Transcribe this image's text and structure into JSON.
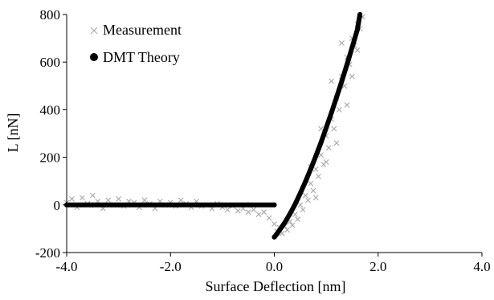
{
  "chart_data": {
    "type": "scatter",
    "title": "",
    "xlabel": "Surface Deflection [nm]",
    "ylabel": "L [nN]",
    "xlim": [
      -4.0,
      4.0
    ],
    "ylim": [
      -200,
      800
    ],
    "xticks": [
      -4.0,
      -2.0,
      0.0,
      2.0,
      4.0
    ],
    "yticks": [
      -200,
      0,
      200,
      400,
      600,
      800
    ],
    "xtick_labels": [
      "-4.0",
      "-2.0",
      "0.0",
      "2.0",
      "4.0"
    ],
    "ytick_labels": [
      "-200",
      "0",
      "200",
      "400",
      "600",
      "800"
    ],
    "grid": false,
    "legend_position": "top-left",
    "colors": {
      "measurement": "#a6a6a6",
      "theory": "#000000"
    },
    "series": [
      {
        "name": "Measurement",
        "marker": "x",
        "points": [
          [
            -4.0,
            10
          ],
          [
            -3.9,
            25
          ],
          [
            -3.8,
            -10
          ],
          [
            -3.7,
            30
          ],
          [
            -3.6,
            5
          ],
          [
            -3.5,
            40
          ],
          [
            -3.4,
            15
          ],
          [
            -3.3,
            -15
          ],
          [
            -3.2,
            20
          ],
          [
            -3.1,
            0
          ],
          [
            -3.0,
            25
          ],
          [
            -2.9,
            -5
          ],
          [
            -2.8,
            15
          ],
          [
            -2.7,
            10
          ],
          [
            -2.6,
            -10
          ],
          [
            -2.5,
            20
          ],
          [
            -2.4,
            5
          ],
          [
            -2.3,
            -15
          ],
          [
            -2.2,
            15
          ],
          [
            -2.1,
            0
          ],
          [
            -2.0,
            10
          ],
          [
            -1.9,
            -5
          ],
          [
            -1.8,
            20
          ],
          [
            -1.7,
            5
          ],
          [
            -1.6,
            -10
          ],
          [
            -1.5,
            15
          ],
          [
            -1.4,
            -5
          ],
          [
            -1.3,
            0
          ],
          [
            -1.2,
            -15
          ],
          [
            -1.1,
            5
          ],
          [
            -1.0,
            -10
          ],
          [
            -0.9,
            -20
          ],
          [
            -0.8,
            -5
          ],
          [
            -0.7,
            -25
          ],
          [
            -0.6,
            -15
          ],
          [
            -0.5,
            -30
          ],
          [
            -0.4,
            -20
          ],
          [
            -0.3,
            -40
          ],
          [
            -0.2,
            -30
          ],
          [
            -0.1,
            -55
          ],
          [
            0.0,
            -80
          ],
          [
            0.05,
            -110
          ],
          [
            0.1,
            -95
          ],
          [
            0.15,
            -120
          ],
          [
            0.2,
            -90
          ],
          [
            0.25,
            -105
          ],
          [
            0.3,
            -70
          ],
          [
            0.35,
            -85
          ],
          [
            0.4,
            -40
          ],
          [
            0.45,
            -60
          ],
          [
            0.5,
            0
          ],
          [
            0.55,
            -20
          ],
          [
            0.6,
            40
          ],
          [
            0.65,
            20
          ],
          [
            0.7,
            90
          ],
          [
            0.75,
            60
          ],
          [
            0.8,
            150
          ],
          [
            0.85,
            120
          ],
          [
            0.9,
            210
          ],
          [
            0.95,
            170
          ],
          [
            1.0,
            290
          ],
          [
            1.05,
            240
          ],
          [
            1.1,
            360
          ],
          [
            1.15,
            320
          ],
          [
            1.2,
            450
          ],
          [
            1.25,
            400
          ],
          [
            1.3,
            540
          ],
          [
            1.35,
            500
          ],
          [
            1.4,
            620
          ],
          [
            1.45,
            590
          ],
          [
            1.5,
            700
          ],
          [
            1.55,
            670
          ],
          [
            1.6,
            760
          ],
          [
            1.65,
            740
          ],
          [
            1.7,
            790
          ],
          [
            0.7,
            160
          ],
          [
            0.9,
            320
          ],
          [
            1.0,
            180
          ],
          [
            1.2,
            260
          ],
          [
            1.4,
            420
          ],
          [
            1.5,
            540
          ],
          [
            1.6,
            650
          ],
          [
            1.3,
            680
          ],
          [
            1.1,
            520
          ],
          [
            0.8,
            30
          ]
        ]
      },
      {
        "name": "DMT Theory",
        "marker": "circle",
        "points": [
          [
            -4.0,
            0
          ],
          [
            -3.5,
            0
          ],
          [
            -3.0,
            0
          ],
          [
            -2.5,
            0
          ],
          [
            -2.0,
            0
          ],
          [
            -1.5,
            0
          ],
          [
            -1.0,
            0
          ],
          [
            -0.5,
            0
          ],
          [
            0.0,
            0
          ],
          [
            0.0,
            -135
          ],
          [
            0.05,
            -122
          ],
          [
            0.1,
            -106
          ],
          [
            0.2,
            -75
          ],
          [
            0.3,
            -38
          ],
          [
            0.4,
            3
          ],
          [
            0.5,
            49
          ],
          [
            0.6,
            98
          ],
          [
            0.7,
            150
          ],
          [
            0.8,
            205
          ],
          [
            0.9,
            263
          ],
          [
            1.0,
            324
          ],
          [
            1.1,
            387
          ],
          [
            1.2,
            453
          ],
          [
            1.3,
            520
          ],
          [
            1.4,
            590
          ],
          [
            1.5,
            662
          ],
          [
            1.6,
            736
          ],
          [
            1.65,
            800
          ]
        ]
      }
    ]
  }
}
